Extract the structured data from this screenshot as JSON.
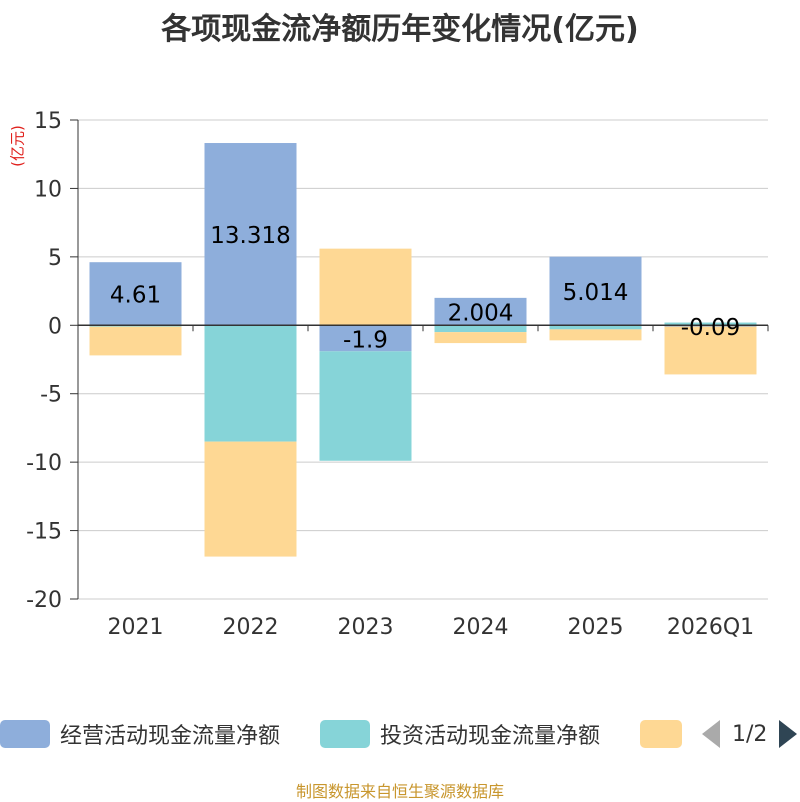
{
  "title": "各项现金流净额历年变化情况(亿元)",
  "unit_label": "(亿元)",
  "source": "制图数据来自恒生聚源数据库",
  "legend": {
    "items": [
      {
        "label": "经营活动现金流量净额",
        "color": "#8eaedb"
      },
      {
        "label": "投资活动现金流量净额",
        "color": "#86d4d8"
      },
      {
        "label": "",
        "color": "#fed894"
      }
    ],
    "page": "1/2"
  },
  "chart_data": {
    "type": "bar",
    "stacked": true,
    "title": "各项现金流净额历年变化情况(亿元)",
    "ylabel": "(亿元)",
    "ylim": [
      -20,
      15
    ],
    "yticks": [
      15,
      10,
      5,
      0,
      -5,
      -10,
      -15,
      -20
    ],
    "categories": [
      "2021",
      "2022",
      "2023",
      "2024",
      "2025",
      "2026Q1"
    ],
    "series": [
      {
        "name": "经营活动现金流量净额",
        "color": "#8eaedb",
        "values": [
          4.61,
          13.318,
          -1.9,
          2.004,
          5.014,
          -0.09
        ],
        "labels": [
          "4.61",
          "13.318",
          "-1.9",
          "2.004",
          "5.014",
          "-0.09"
        ]
      },
      {
        "name": "投资活动现金流量净额",
        "color": "#86d4d8",
        "values": [
          -0.1,
          -8.5,
          -8.0,
          -0.5,
          -0.3,
          0.2
        ]
      },
      {
        "name": "",
        "color": "#fed894",
        "values": [
          -2.1,
          -8.4,
          5.6,
          -0.8,
          -0.8,
          -3.5
        ]
      }
    ]
  }
}
